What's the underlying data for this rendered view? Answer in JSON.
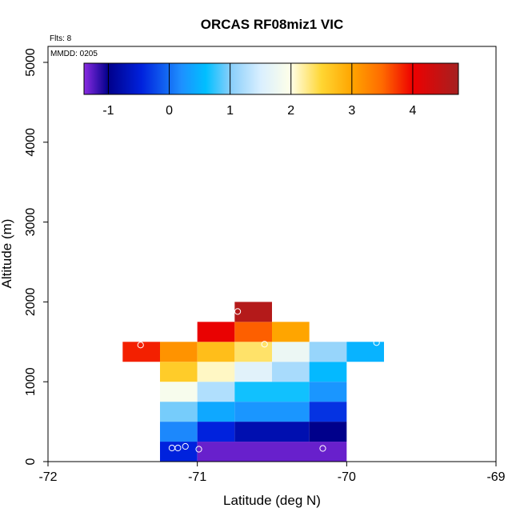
{
  "chart_data": {
    "type": "heatmap",
    "title": "ORCAS RF08miz1 VIC",
    "annotations": {
      "flights": "Flts: 8",
      "date": "MMDD: 0205"
    },
    "xlabel": "Latitude (deg N)",
    "ylabel": "Altitude (m)",
    "xlim": [
      -72,
      -69
    ],
    "ylim": [
      0,
      5200
    ],
    "x_ticks": [
      -72,
      -71,
      -70,
      -69
    ],
    "x_tick_labels": [
      "-72",
      "-71",
      "-70",
      "-69"
    ],
    "y_ticks": [
      0,
      1000,
      2000,
      3000,
      4000,
      5000
    ],
    "y_tick_labels": [
      "0",
      "1000",
      "2000",
      "3000",
      "4000",
      "5000"
    ],
    "colorbar": {
      "range": [
        -1.4,
        4.75
      ],
      "ticks": [
        -1,
        0,
        1,
        2,
        3,
        4
      ],
      "tick_labels": [
        "-1",
        "0",
        "1",
        "2",
        "3",
        "4"
      ],
      "stops": [
        {
          "v": -1.4,
          "c": "#8a2be2"
        },
        {
          "v": -1.0,
          "c": "#00008b"
        },
        {
          "v": -0.45,
          "c": "#0022dd"
        },
        {
          "v": 0.2,
          "c": "#1e90ff"
        },
        {
          "v": 0.6,
          "c": "#00bfff"
        },
        {
          "v": 1.0,
          "c": "#87cefa"
        },
        {
          "v": 1.5,
          "c": "#d9efff"
        },
        {
          "v": 2.0,
          "c": "#ffffe8"
        },
        {
          "v": 2.5,
          "c": "#ffd633"
        },
        {
          "v": 3.0,
          "c": "#ffa500"
        },
        {
          "v": 3.5,
          "c": "#ff6a00"
        },
        {
          "v": 4.0,
          "c": "#ee0000"
        },
        {
          "v": 4.75,
          "c": "#a52020"
        }
      ]
    },
    "cells": [
      {
        "lat": [
          -71.25,
          -71.0
        ],
        "alt": [
          0,
          250
        ],
        "value": -0.45
      },
      {
        "lat": [
          -71.0,
          -70.0
        ],
        "alt": [
          0,
          250
        ],
        "value": -1.3
      },
      {
        "lat": [
          -71.25,
          -71.0
        ],
        "alt": [
          250,
          500
        ],
        "value": 0.15
      },
      {
        "lat": [
          -71.0,
          -70.75
        ],
        "alt": [
          250,
          500
        ],
        "value": -0.45
      },
      {
        "lat": [
          -70.75,
          -70.25
        ],
        "alt": [
          250,
          500
        ],
        "value": -0.75
      },
      {
        "lat": [
          -70.25,
          -70.0
        ],
        "alt": [
          250,
          500
        ],
        "value": -1.0
      },
      {
        "lat": [
          -71.25,
          -71.0
        ],
        "alt": [
          500,
          750
        ],
        "value": 0.95
      },
      {
        "lat": [
          -71.0,
          -70.75
        ],
        "alt": [
          500,
          750
        ],
        "value": 0.4
      },
      {
        "lat": [
          -70.75,
          -70.25
        ],
        "alt": [
          500,
          750
        ],
        "value": 0.25
      },
      {
        "lat": [
          -70.25,
          -70.0
        ],
        "alt": [
          500,
          750
        ],
        "value": -0.35
      },
      {
        "lat": [
          -71.25,
          -71.0
        ],
        "alt": [
          750,
          1000
        ],
        "value": 1.9
      },
      {
        "lat": [
          -71.0,
          -70.75
        ],
        "alt": [
          750,
          1000
        ],
        "value": 1.25
      },
      {
        "lat": [
          -70.75,
          -70.25
        ],
        "alt": [
          750,
          1000
        ],
        "value": 0.65
      },
      {
        "lat": [
          -70.25,
          -70.0
        ],
        "alt": [
          750,
          1000
        ],
        "value": 0.25
      },
      {
        "lat": [
          -71.25,
          -71.0
        ],
        "alt": [
          1000,
          1250
        ],
        "value": 2.6
      },
      {
        "lat": [
          -71.0,
          -70.75
        ],
        "alt": [
          1000,
          1250
        ],
        "value": 2.1
      },
      {
        "lat": [
          -70.75,
          -70.5
        ],
        "alt": [
          1000,
          1250
        ],
        "value": 1.6
      },
      {
        "lat": [
          -70.5,
          -70.25
        ],
        "alt": [
          1000,
          1250
        ],
        "value": 1.2
      },
      {
        "lat": [
          -70.25,
          -70.0
        ],
        "alt": [
          1000,
          1250
        ],
        "value": 0.55
      },
      {
        "lat": [
          -71.5,
          -71.25
        ],
        "alt": [
          1250,
          1500
        ],
        "value": 3.85
      },
      {
        "lat": [
          -71.25,
          -71.0
        ],
        "alt": [
          1250,
          1500
        ],
        "value": 3.15
      },
      {
        "lat": [
          -71.0,
          -70.75
        ],
        "alt": [
          1250,
          1500
        ],
        "value": 2.75
      },
      {
        "lat": [
          -70.75,
          -70.5
        ],
        "alt": [
          1250,
          1500
        ],
        "value": 2.35
      },
      {
        "lat": [
          -70.5,
          -70.25
        ],
        "alt": [
          1250,
          1500
        ],
        "value": 1.75
      },
      {
        "lat": [
          -70.25,
          -70.0
        ],
        "alt": [
          1250,
          1500
        ],
        "value": 1.1
      },
      {
        "lat": [
          -70.0,
          -69.75
        ],
        "alt": [
          1250,
          1500
        ],
        "value": 0.5
      },
      {
        "lat": [
          -71.0,
          -70.75
        ],
        "alt": [
          1500,
          1750
        ],
        "value": 4.05
      },
      {
        "lat": [
          -70.75,
          -70.5
        ],
        "alt": [
          1500,
          1750
        ],
        "value": 3.55
      },
      {
        "lat": [
          -70.5,
          -70.25
        ],
        "alt": [
          1500,
          1750
        ],
        "value": 3.0
      },
      {
        "lat": [
          -70.75,
          -70.5
        ],
        "alt": [
          1750,
          2000
        ],
        "value": 4.6
      }
    ],
    "points": [
      {
        "lat": -71.38,
        "alt": 1460
      },
      {
        "lat": -70.55,
        "alt": 1470
      },
      {
        "lat": -69.8,
        "alt": 1490
      },
      {
        "lat": -70.73,
        "alt": 1880
      },
      {
        "lat": -71.17,
        "alt": 170
      },
      {
        "lat": -71.13,
        "alt": 170
      },
      {
        "lat": -71.08,
        "alt": 190
      },
      {
        "lat": -70.99,
        "alt": 155
      },
      {
        "lat": -70.16,
        "alt": 165
      }
    ]
  }
}
